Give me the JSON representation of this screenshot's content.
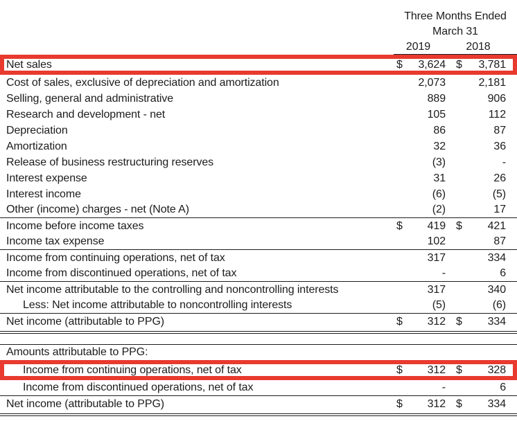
{
  "header": {
    "period_line1": "Three Months Ended",
    "period_line2": "March 31",
    "years": [
      "2019",
      "2018"
    ]
  },
  "rows": [
    {
      "label": "Net sales",
      "d1": "$",
      "v1": "3,624",
      "d2": "$",
      "v2": "3,781",
      "highlight": true
    },
    {
      "label": "Cost of sales, exclusive of depreciation and amortization",
      "v1": "2,073",
      "v2": "2,181"
    },
    {
      "label": "Selling, general and administrative",
      "v1": "889",
      "v2": "906"
    },
    {
      "label": "Research and development - net",
      "v1": "105",
      "v2": "112"
    },
    {
      "label": "Depreciation",
      "v1": "86",
      "v2": "87"
    },
    {
      "label": "Amortization",
      "v1": "32",
      "v2": "36"
    },
    {
      "label": "Release of business restructuring reserves",
      "v1": "(3)",
      "v2": "-"
    },
    {
      "label": "Interest expense",
      "v1": "31",
      "v2": "26"
    },
    {
      "label": "Interest income",
      "v1": "(6)",
      "v2": "(5)"
    },
    {
      "label": "Other (income) charges - net (Note A)",
      "v1": "(2)",
      "v2": "17",
      "rule_below": true
    },
    {
      "label": "Income before income taxes",
      "d1": "$",
      "v1": "419",
      "d2": "$",
      "v2": "421"
    },
    {
      "label": "Income tax expense",
      "v1": "102",
      "v2": "87",
      "rule_below": true
    },
    {
      "label": "Income from continuing operations, net of tax",
      "v1": "317",
      "v2": "334"
    },
    {
      "label": "Income from discontinued operations, net of tax",
      "v1": "-",
      "v2": "6",
      "rule_below": true
    },
    {
      "label": "Net income attributable to the controlling and noncontrolling interests",
      "v1": "317",
      "v2": "340"
    },
    {
      "label": "Less: Net income attributable to noncontrolling interests",
      "v1": "(5)",
      "v2": "(6)",
      "indent": true,
      "rule_below": true
    },
    {
      "label": "Net income (attributable to PPG)",
      "d1": "$",
      "v1": "312",
      "d2": "$",
      "v2": "334",
      "double_below": true
    },
    {
      "label": "Amounts attributable to PPG:",
      "spacer_above": true,
      "rule_above": true
    },
    {
      "label": "Income from continuing operations, net of tax",
      "d1": "$",
      "v1": "312",
      "d2": "$",
      "v2": "328",
      "indent": true,
      "highlight": true
    },
    {
      "label": "Income from discontinued operations, net of tax",
      "v1": "-",
      "v2": "6",
      "indent": true,
      "rule_below": true
    },
    {
      "label": "Net income (attributable to PPG)",
      "d1": "$",
      "v1": "312",
      "d2": "$",
      "v2": "334",
      "double_below": true
    }
  ],
  "styles": {
    "highlight_color": "#e83a2e",
    "text_color": "#1d1b1c"
  }
}
